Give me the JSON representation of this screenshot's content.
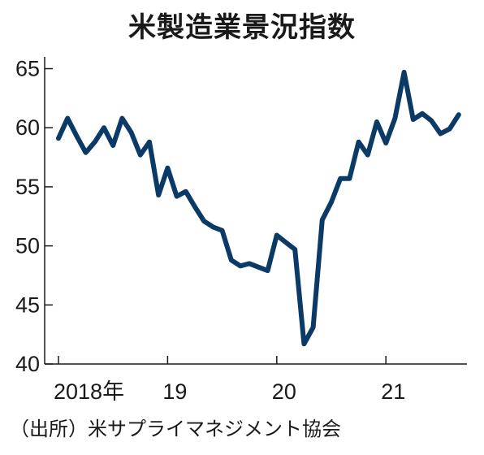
{
  "chart_data": {
    "type": "line",
    "title": "米製造業景況指数",
    "source": "（出所）米サプライマネジメント協会",
    "line_color": "#0b3a66",
    "ylim": [
      40,
      66
    ],
    "yticks": [
      40,
      45,
      50,
      55,
      60,
      65
    ],
    "x_tick_labels": [
      {
        "label": "2018年",
        "index": 0
      },
      {
        "label": "19",
        "index": 12
      },
      {
        "label": "20",
        "index": 24
      },
      {
        "label": "21",
        "index": 36
      }
    ],
    "series": [
      {
        "values": [
          59.1,
          60.8,
          59.3,
          57.9,
          58.8,
          60.0,
          58.5,
          60.8,
          59.6,
          57.7,
          58.8,
          54.3,
          56.6,
          54.2,
          54.6,
          53.3,
          52.1,
          51.6,
          51.3,
          48.8,
          48.3,
          48.5,
          48.2,
          47.9,
          50.9,
          50.3,
          49.7,
          41.7,
          43.1,
          52.2,
          53.7,
          55.7,
          55.7,
          58.8,
          57.7,
          60.5,
          58.7,
          60.8,
          64.7,
          60.7,
          61.2,
          60.6,
          59.5,
          59.9,
          61.1
        ]
      }
    ]
  }
}
